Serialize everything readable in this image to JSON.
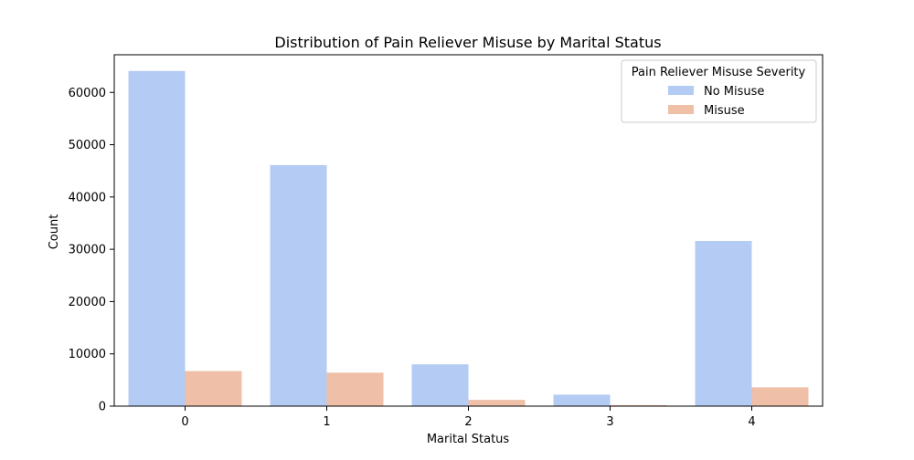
{
  "chart_data": {
    "type": "bar",
    "title": "Distribution of Pain Reliever Misuse by Marital Status",
    "xlabel": "Marital Status",
    "ylabel": "Count",
    "categories": [
      "0",
      "1",
      "2",
      "3",
      "4"
    ],
    "ylim": [
      0,
      67200
    ],
    "yticks": [
      0,
      10000,
      20000,
      30000,
      40000,
      50000,
      60000
    ],
    "grid": false,
    "legend": {
      "title": "Pain Reliever Misuse Severity",
      "placement": "top-right"
    },
    "series": [
      {
        "name": "No Misuse",
        "color": "#b4cbf4",
        "values": [
          64100,
          46100,
          8000,
          2200,
          31600
        ]
      },
      {
        "name": "Misuse",
        "color": "#efbfa7",
        "values": [
          6700,
          6400,
          1200,
          200,
          3600
        ]
      }
    ]
  }
}
